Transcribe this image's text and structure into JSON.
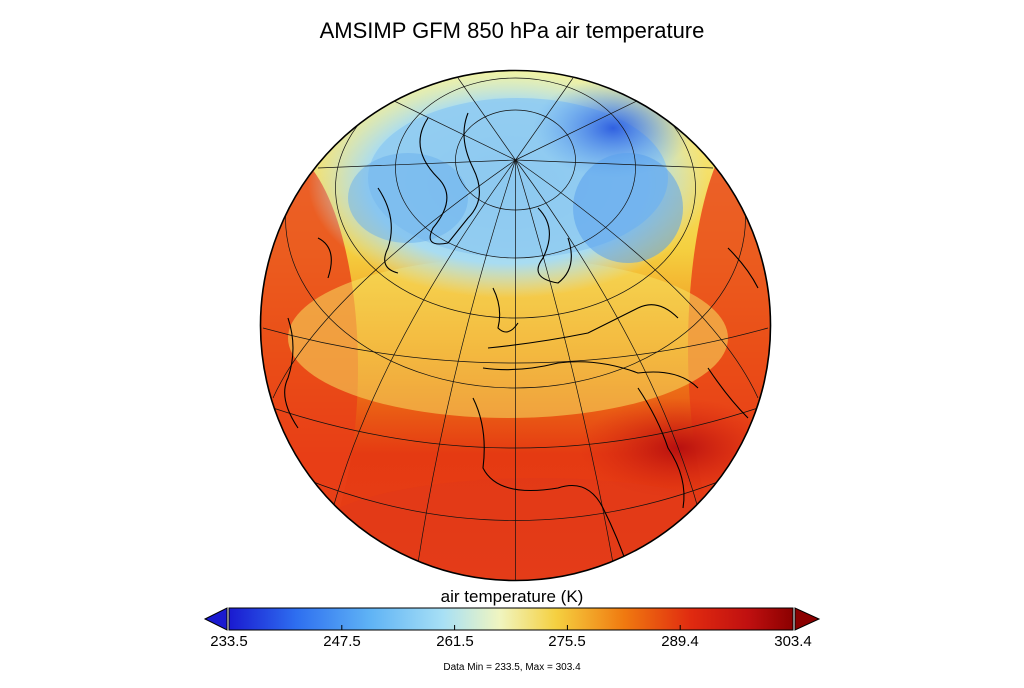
{
  "title": "AMSIMP GFM 850 hPa air temperature",
  "colorbar": {
    "label": "air temperature (K)",
    "min": 233.5,
    "max": 303.4,
    "ticks": [
      "233.5",
      "247.5",
      "261.5",
      "275.5",
      "289.4",
      "303.4"
    ],
    "extend": "both",
    "colors": [
      "#1a1ad0",
      "#2e6ff0",
      "#5fb3f5",
      "#a8e0f5",
      "#f5f5a0",
      "#f5c030",
      "#f07a10",
      "#e02a10",
      "#c01010",
      "#8b0000"
    ]
  },
  "data_range": "Data Min = 233.5, Max = 303.4",
  "map": {
    "projection": "orthographic",
    "region": "northern hemisphere centered on Europe / Africa",
    "variable": "850 hPa air temperature"
  }
}
